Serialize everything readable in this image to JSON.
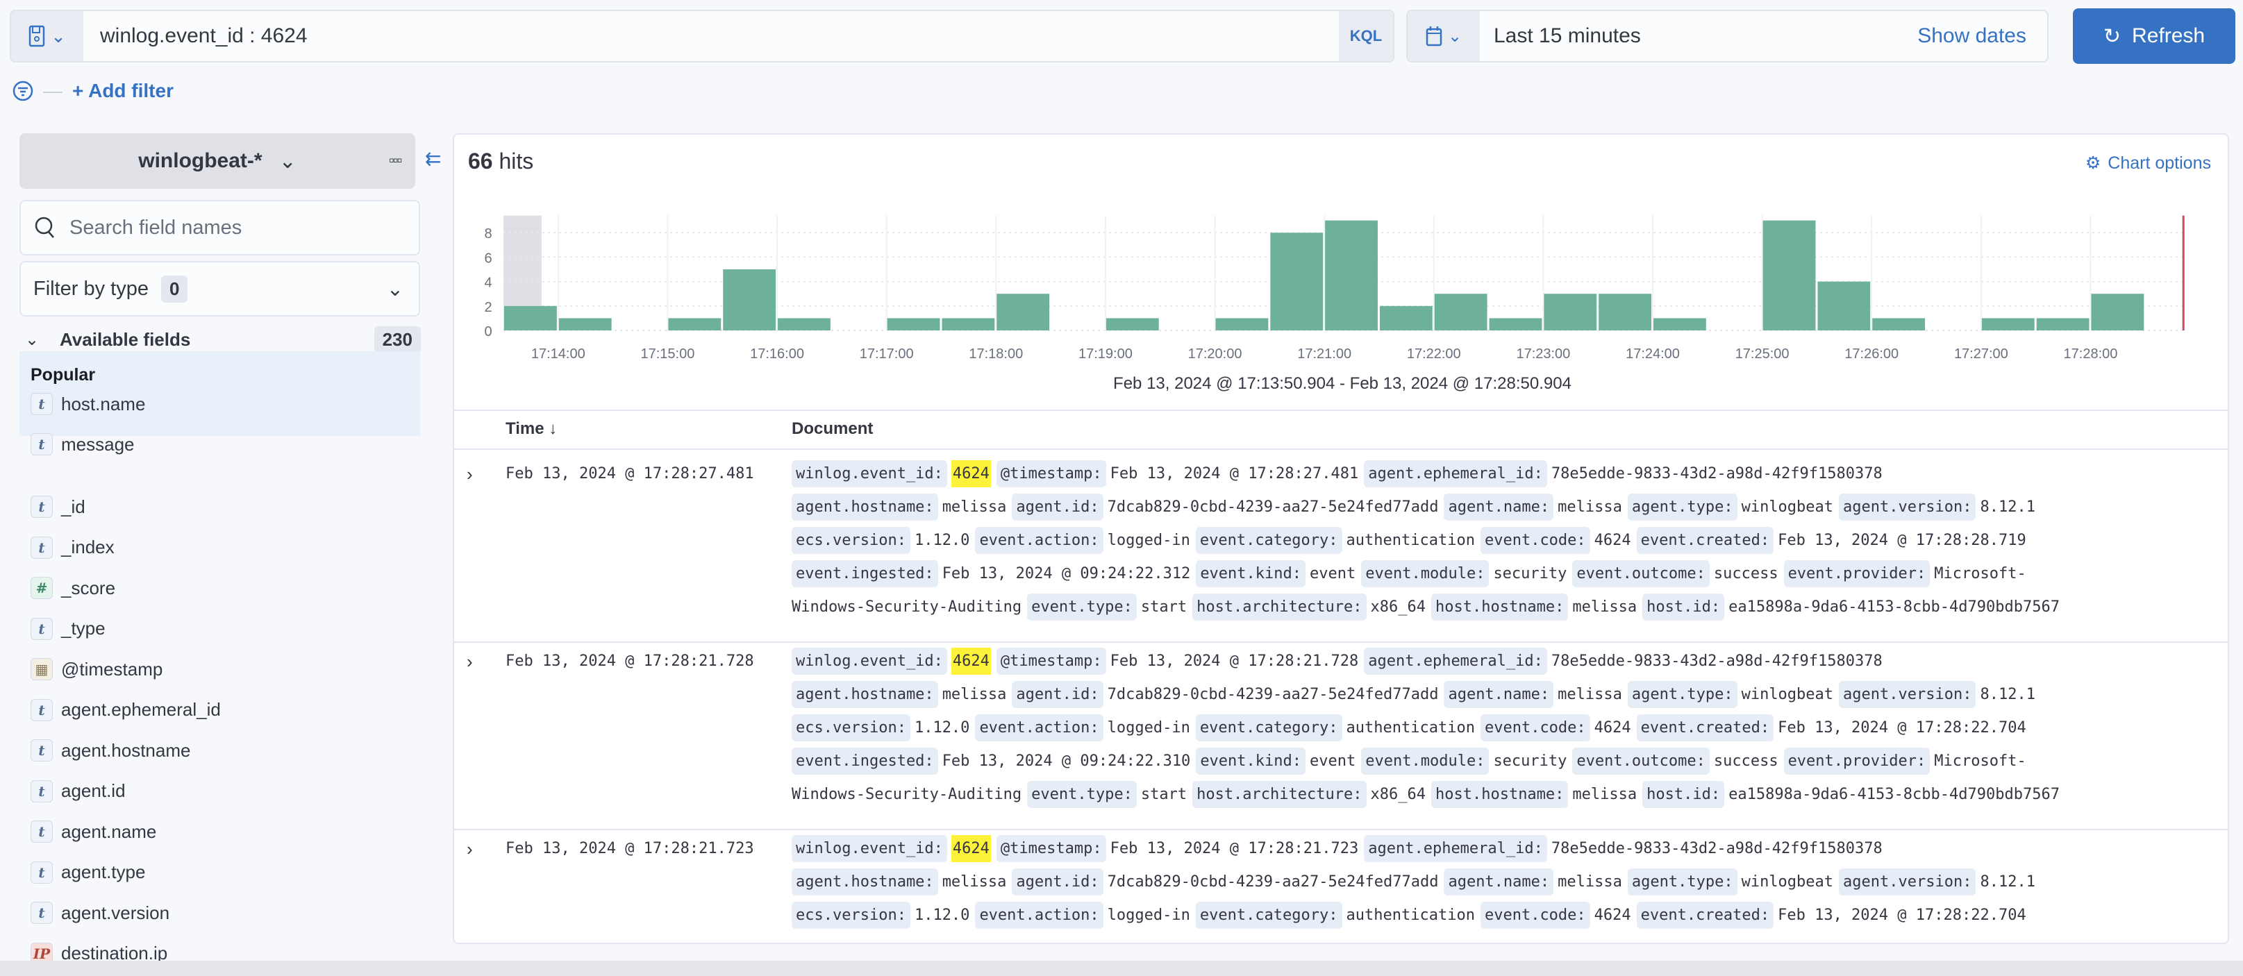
{
  "query_bar": {
    "query": "winlog.event_id : 4624",
    "language_label": "KQL",
    "save_icon": "save-icon"
  },
  "date_picker": {
    "range": "Last 15 minutes",
    "show_dates_label": "Show dates",
    "icon": "calendar-icon"
  },
  "refresh_button": {
    "label": "Refresh",
    "color": "#3572c4"
  },
  "filters": {
    "add_filter_label": "+ Add filter"
  },
  "sidebar": {
    "index_pattern": "winlogbeat-*",
    "search_placeholder": "Search field names",
    "filter_by_type_label": "Filter by type",
    "filter_by_type_count": "0",
    "available_fields_label": "Available fields",
    "available_fields_count": "230",
    "popular_label": "Popular",
    "popular_fields": [
      {
        "name": "host.name",
        "type": "t"
      },
      {
        "name": "message",
        "type": "t"
      }
    ],
    "fields": [
      {
        "name": "_id",
        "type": "t"
      },
      {
        "name": "_index",
        "type": "t"
      },
      {
        "name": "_score",
        "type": "#"
      },
      {
        "name": "_type",
        "type": "t"
      },
      {
        "name": "@timestamp",
        "type": "date"
      },
      {
        "name": "agent.ephemeral_id",
        "type": "t"
      },
      {
        "name": "agent.hostname",
        "type": "t"
      },
      {
        "name": "agent.id",
        "type": "t"
      },
      {
        "name": "agent.name",
        "type": "t"
      },
      {
        "name": "agent.type",
        "type": "t"
      },
      {
        "name": "agent.version",
        "type": "t"
      },
      {
        "name": "destination.ip",
        "type": "ip"
      }
    ]
  },
  "main": {
    "hits_count": "66",
    "hits_label": "hits",
    "chart_options_label": "Chart options",
    "time_range_label": "Feb 13, 2024 @ 17:13:50.904 - Feb 13, 2024 @ 17:28:50.904",
    "columns": {
      "time": "Time ↓",
      "document": "Document"
    },
    "rows": [
      {
        "time": "Feb 13, 2024 @ 17:28:27.481",
        "lines": [
          [
            [
              "winlog.event_id:",
              "4624",
              true
            ],
            [
              "@timestamp:",
              "Feb 13, 2024 @ 17:28:27.481"
            ],
            [
              "agent.ephemeral_id:",
              "78e5edde-9833-43d2-a98d-42f9f1580378"
            ]
          ],
          [
            [
              "agent.hostname:",
              "melissa"
            ],
            [
              "agent.id:",
              "7dcab829-0cbd-4239-aa27-5e24fed77add"
            ],
            [
              "agent.name:",
              "melissa"
            ],
            [
              "agent.type:",
              "winlogbeat"
            ],
            [
              "agent.version:",
              "8.12.1"
            ]
          ],
          [
            [
              "ecs.version:",
              "1.12.0"
            ],
            [
              "event.action:",
              "logged-in"
            ],
            [
              "event.category:",
              "authentication"
            ],
            [
              "event.code:",
              "4624"
            ],
            [
              "event.created:",
              "Feb 13, 2024 @ 17:28:28.719"
            ]
          ],
          [
            [
              "event.ingested:",
              "Feb 13, 2024 @ 09:24:22.312"
            ],
            [
              "event.kind:",
              "event"
            ],
            [
              "event.module:",
              "security"
            ],
            [
              "event.outcome:",
              "success"
            ],
            [
              "event.provider:",
              "Microsoft-"
            ]
          ],
          [
            [
              "",
              "Windows-Security-Auditing"
            ],
            [
              "event.type:",
              "start"
            ],
            [
              "host.architecture:",
              "x86_64"
            ],
            [
              "host.hostname:",
              "melissa"
            ],
            [
              "host.id:",
              "ea15898a-9da6-4153-8cbb-4d790bdb7567"
            ]
          ]
        ]
      },
      {
        "time": "Feb 13, 2024 @ 17:28:21.728",
        "lines": [
          [
            [
              "winlog.event_id:",
              "4624",
              true
            ],
            [
              "@timestamp:",
              "Feb 13, 2024 @ 17:28:21.728"
            ],
            [
              "agent.ephemeral_id:",
              "78e5edde-9833-43d2-a98d-42f9f1580378"
            ]
          ],
          [
            [
              "agent.hostname:",
              "melissa"
            ],
            [
              "agent.id:",
              "7dcab829-0cbd-4239-aa27-5e24fed77add"
            ],
            [
              "agent.name:",
              "melissa"
            ],
            [
              "agent.type:",
              "winlogbeat"
            ],
            [
              "agent.version:",
              "8.12.1"
            ]
          ],
          [
            [
              "ecs.version:",
              "1.12.0"
            ],
            [
              "event.action:",
              "logged-in"
            ],
            [
              "event.category:",
              "authentication"
            ],
            [
              "event.code:",
              "4624"
            ],
            [
              "event.created:",
              "Feb 13, 2024 @ 17:28:22.704"
            ]
          ],
          [
            [
              "event.ingested:",
              "Feb 13, 2024 @ 09:24:22.310"
            ],
            [
              "event.kind:",
              "event"
            ],
            [
              "event.module:",
              "security"
            ],
            [
              "event.outcome:",
              "success"
            ],
            [
              "event.provider:",
              "Microsoft-"
            ]
          ],
          [
            [
              "",
              "Windows-Security-Auditing"
            ],
            [
              "event.type:",
              "start"
            ],
            [
              "host.architecture:",
              "x86_64"
            ],
            [
              "host.hostname:",
              "melissa"
            ],
            [
              "host.id:",
              "ea15898a-9da6-4153-8cbb-4d790bdb7567"
            ]
          ]
        ]
      },
      {
        "time": "Feb 13, 2024 @ 17:28:21.723",
        "lines": [
          [
            [
              "winlog.event_id:",
              "4624",
              true
            ],
            [
              "@timestamp:",
              "Feb 13, 2024 @ 17:28:21.723"
            ],
            [
              "agent.ephemeral_id:",
              "78e5edde-9833-43d2-a98d-42f9f1580378"
            ]
          ],
          [
            [
              "agent.hostname:",
              "melissa"
            ],
            [
              "agent.id:",
              "7dcab829-0cbd-4239-aa27-5e24fed77add"
            ],
            [
              "agent.name:",
              "melissa"
            ],
            [
              "agent.type:",
              "winlogbeat"
            ],
            [
              "agent.version:",
              "8.12.1"
            ]
          ],
          [
            [
              "ecs.version:",
              "1.12.0"
            ],
            [
              "event.action:",
              "logged-in"
            ],
            [
              "event.category:",
              "authentication"
            ],
            [
              "event.code:",
              "4624"
            ],
            [
              "event.created:",
              "Feb 13, 2024 @ 17:28:22.704"
            ]
          ]
        ]
      }
    ]
  },
  "chart_data": {
    "type": "bar",
    "interval": "30s",
    "x_domain": [
      "17:13:30",
      "17:28:50.904"
    ],
    "categories": [
      "17:13:30",
      "17:14:00",
      "17:14:30",
      "17:15:00",
      "17:15:30",
      "17:16:00",
      "17:16:30",
      "17:17:00",
      "17:17:30",
      "17:18:00",
      "17:18:30",
      "17:19:00",
      "17:19:30",
      "17:20:00",
      "17:20:30",
      "17:21:00",
      "17:21:30",
      "17:22:00",
      "17:22:30",
      "17:23:00",
      "17:23:30",
      "17:24:00",
      "17:24:30",
      "17:25:00",
      "17:25:30",
      "17:26:00",
      "17:26:30",
      "17:27:00",
      "17:27:30",
      "17:28:00"
    ],
    "values": [
      2,
      1,
      0,
      1,
      5,
      1,
      0,
      1,
      1,
      3,
      0,
      1,
      0,
      1,
      8,
      9,
      2,
      3,
      1,
      3,
      3,
      1,
      0,
      9,
      4,
      1,
      0,
      1,
      1,
      3
    ],
    "x_tick_labels": [
      "17:14:00",
      "17:15:00",
      "17:16:00",
      "17:17:00",
      "17:18:00",
      "17:19:00",
      "17:20:00",
      "17:21:00",
      "17:22:00",
      "17:23:00",
      "17:24:00",
      "17:25:00",
      "17:26:00",
      "17:27:00",
      "17:28:00"
    ],
    "y_tick_labels": [
      "0",
      "2",
      "4",
      "6",
      "8"
    ],
    "ylim": [
      0,
      9
    ],
    "grid": true,
    "bar_color": "#6db198",
    "now_marker_color": "#d1495b",
    "partial_bucket_shaded": true
  }
}
